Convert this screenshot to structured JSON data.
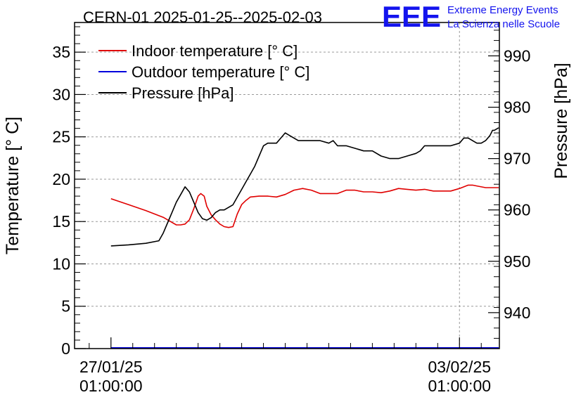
{
  "chart_data": {
    "type": "line",
    "title": "CERN-01 2025-01-25--2025-02-03",
    "logo": {
      "text": "EEE",
      "line1": "Extreme Energy Events",
      "line2": "La Scienza nelle Scuole"
    },
    "ylabel": "Temperature [° C]",
    "y2label": "Pressure [hPa]",
    "ylim": [
      0,
      38.5
    ],
    "y2lim": [
      933,
      996.5
    ],
    "xlim": [
      -0.418,
      4.458
    ],
    "x_tick_labels": [
      {
        "x": 0,
        "line1": "27/01/25",
        "line2": "01:00:00"
      },
      {
        "x": 4,
        "line1": "03/02/25",
        "line2": "01:00:00"
      }
    ],
    "y_ticks": [
      0,
      5,
      10,
      15,
      20,
      25,
      30,
      35
    ],
    "y2_ticks": [
      940,
      950,
      960,
      970,
      980,
      990
    ],
    "grid": true,
    "legend_position": "top-left",
    "legend": [
      {
        "name": "Indoor temperature [° C]",
        "color": "#e00000"
      },
      {
        "name": "Outdoor temperature [° C]",
        "color": "#0000dd"
      },
      {
        "name": "Pressure [hPa]",
        "color": "#000000"
      }
    ],
    "series": [
      {
        "name": "Indoor temperature [° C]",
        "axis": "left",
        "color": "#e00000",
        "x": [
          0.0,
          0.2,
          0.4,
          0.6,
          0.7,
          0.75,
          0.8,
          0.85,
          0.9,
          0.95,
          1.0,
          1.03,
          1.07,
          1.1,
          1.15,
          1.2,
          1.25,
          1.3,
          1.35,
          1.4,
          1.45,
          1.5,
          1.55,
          1.6,
          1.7,
          1.8,
          1.9,
          2.0,
          2.1,
          2.2,
          2.3,
          2.4,
          2.5,
          2.6,
          2.7,
          2.8,
          2.9,
          3.0,
          3.1,
          3.2,
          3.3,
          3.4,
          3.5,
          3.6,
          3.7,
          3.8,
          3.9,
          4.0,
          4.1,
          4.15,
          4.2,
          4.3,
          4.35,
          4.4,
          4.45
        ],
        "y": [
          17.7,
          17.0,
          16.3,
          15.5,
          14.9,
          14.6,
          14.6,
          14.7,
          15.2,
          16.5,
          18.0,
          18.3,
          18.0,
          16.8,
          15.8,
          15.2,
          14.7,
          14.4,
          14.3,
          14.4,
          15.9,
          17.0,
          17.5,
          17.9,
          18.0,
          18.0,
          17.9,
          18.2,
          18.7,
          18.9,
          18.7,
          18.3,
          18.3,
          18.3,
          18.7,
          18.7,
          18.5,
          18.5,
          18.4,
          18.6,
          18.9,
          18.8,
          18.7,
          18.8,
          18.6,
          18.6,
          18.6,
          18.9,
          19.3,
          19.3,
          19.2,
          19.0,
          19.0,
          19.0,
          19.0
        ]
      },
      {
        "name": "Outdoor temperature [° C]",
        "axis": "left",
        "color": "#0000dd",
        "x": [
          0.0,
          4.45
        ],
        "y": [
          0.1,
          0.1
        ]
      },
      {
        "name": "Pressure [hPa]",
        "axis": "right",
        "color": "#000000",
        "x": [
          0.0,
          0.2,
          0.4,
          0.55,
          0.6,
          0.65,
          0.7,
          0.75,
          0.8,
          0.85,
          0.9,
          0.95,
          1.0,
          1.05,
          1.1,
          1.15,
          1.2,
          1.25,
          1.3,
          1.4,
          1.45,
          1.5,
          1.55,
          1.6,
          1.65,
          1.7,
          1.75,
          1.8,
          1.85,
          1.9,
          1.95,
          2.0,
          2.05,
          2.1,
          2.15,
          2.2,
          2.3,
          2.4,
          2.5,
          2.55,
          2.6,
          2.7,
          2.8,
          2.9,
          3.0,
          3.1,
          3.2,
          3.3,
          3.4,
          3.5,
          3.55,
          3.6,
          3.7,
          3.8,
          3.9,
          4.0,
          4.05,
          4.1,
          4.15,
          4.2,
          4.25,
          4.3,
          4.35,
          4.38,
          4.4,
          4.45
        ],
        "y": [
          953,
          953.2,
          953.5,
          954,
          955.5,
          957.5,
          959.5,
          961.5,
          963,
          964.5,
          963.5,
          961.5,
          959.5,
          958.3,
          958,
          958.5,
          959.5,
          960,
          960,
          961,
          962.5,
          964,
          965.5,
          967,
          968.5,
          970.5,
          972.5,
          973,
          973,
          973,
          974,
          975,
          974.5,
          974,
          973.5,
          973.5,
          973.5,
          973.5,
          973,
          973.5,
          972.5,
          972.5,
          972,
          971.5,
          971.5,
          970.5,
          970,
          970,
          970.5,
          971,
          971.5,
          972.5,
          972.5,
          972.5,
          972.5,
          973,
          974,
          974,
          973.5,
          973,
          973,
          973.5,
          974.5,
          975.5,
          975.5,
          976
        ]
      }
    ]
  }
}
